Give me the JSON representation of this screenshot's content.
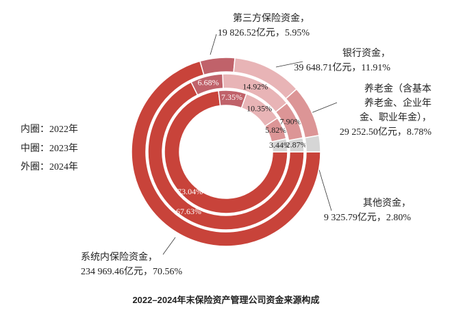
{
  "chart_data": {
    "type": "nested-donut",
    "title": "2022–2024年末保险资产管理公司资金来源构成",
    "categories": [
      "系统内保险资金，",
      "第三方保险资金，",
      "银行资金，",
      "养老金（含基本\n养老金、企业年\n金、职业年金），",
      "其他资金，"
    ],
    "colors": [
      "#c8433a",
      "#c0626a",
      "#e8b4b6",
      "#dc9596",
      "#d6d6d6"
    ],
    "series": [
      {
        "name": "内圈：2022年",
        "values": [
          73.04,
          7.35,
          10.35,
          5.82,
          3.44
        ],
        "value_labels": [
          "73.04%",
          "7.35%",
          "10.35%",
          "5.82%",
          "3.44%"
        ]
      },
      {
        "name": "中圈：2023年",
        "values": [
          67.63,
          6.68,
          14.92,
          7.9,
          2.87
        ],
        "value_labels": [
          "67.63%",
          "6.68%",
          "14.92%",
          "7.90%",
          "2.87%"
        ]
      },
      {
        "name": "外圈：2024年",
        "values": [
          70.56,
          5.95,
          11.91,
          8.78,
          2.8
        ],
        "value_labels": [
          "234 969.46亿元，70.56%",
          "19 826.52亿元，5.95%",
          "39 648.71亿元，11.91%",
          "29 252.50亿元，8.78%",
          "9 325.79亿元，2.80%"
        ]
      }
    ]
  }
}
